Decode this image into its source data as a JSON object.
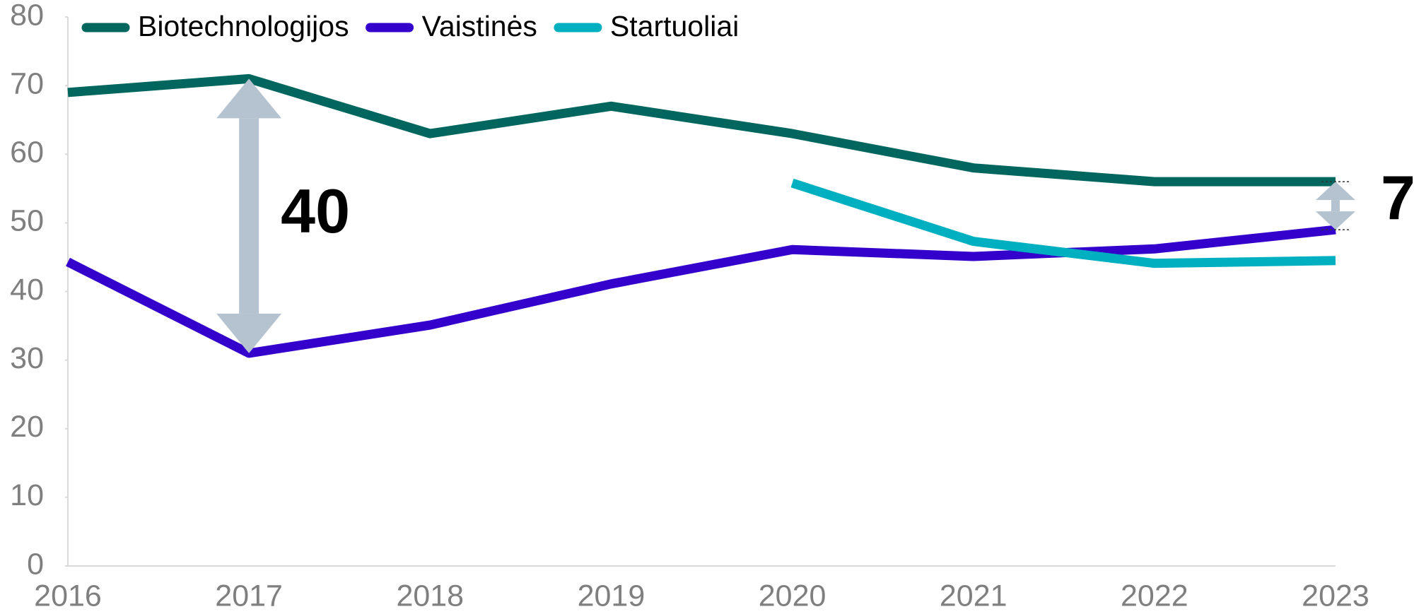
{
  "chart_data": {
    "type": "line",
    "categories": [
      "2016",
      "2017",
      "2018",
      "2019",
      "2020",
      "2021",
      "2022",
      "2023"
    ],
    "series": [
      {
        "name": "Biotechnologijos",
        "color": "#00665e",
        "values": [
          69,
          71,
          63,
          67,
          63,
          58,
          56,
          56
        ]
      },
      {
        "name": "Vaistinės",
        "color": "#3300cc",
        "values": [
          44.3,
          31,
          35.1,
          41.1,
          46.1,
          45.1,
          46.2,
          49
        ]
      },
      {
        "name": "Startuoliai",
        "color": "#00b0c0",
        "values": [
          null,
          null,
          null,
          null,
          55.8,
          47.3,
          44.1,
          44.5
        ]
      }
    ],
    "ylim": [
      0,
      80
    ],
    "yticks": [
      0,
      10,
      20,
      30,
      40,
      50,
      60,
      70,
      80
    ],
    "legend": "top-left",
    "annotations": [
      {
        "text": "40"
      },
      {
        "text": "7"
      }
    ]
  }
}
